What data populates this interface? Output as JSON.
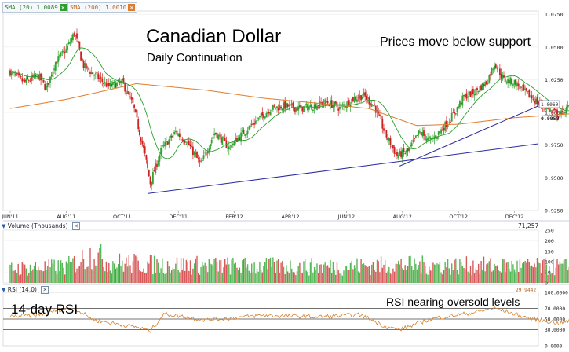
{
  "legend": {
    "sma20": {
      "label": "SMA (20) 1.0089",
      "color": "#2e9e2e",
      "close_color": "#2e9e2e"
    },
    "sma200": {
      "label": "SMA (200) 1.0010",
      "color": "#e07b2a",
      "close_color": "#e07b2a"
    }
  },
  "annotations": {
    "title": "Canadian Dollar",
    "subtitle": "Daily Continuation",
    "price_note": "Prices move below support",
    "rsi_label": "14-day RSI",
    "rsi_note": "RSI nearing oversold levels"
  },
  "panels": {
    "volume_title": "Volume (Thousands)",
    "volume_last": "71,257",
    "rsi_title": "RSI (14,0)"
  },
  "icons": {
    "collapse": "triangle-down-icon",
    "close": "close-icon"
  },
  "chart_data": [
    {
      "type": "candlestick",
      "title": "Canadian Dollar",
      "subtitle": "Daily Continuation",
      "x_tick_labels": [
        "JUN'11",
        "AUG'11",
        "OCT'11",
        "DEC'11",
        "FEB'12",
        "APR'12",
        "JUN'12",
        "AUG'12",
        "OCT'12",
        "DEC'12"
      ],
      "y_tick_labels": [
        "1.0750",
        "1.0500",
        "1.0250",
        "1.0000",
        "0.9750",
        "0.9500",
        "0.9250"
      ],
      "ylim": [
        0.925,
        1.0775
      ],
      "price_anchors": [
        {
          "month": 0,
          "price": 1.031
        },
        {
          "month": 0.5,
          "price": 1.023
        },
        {
          "month": 1.0,
          "price": 1.028
        },
        {
          "month": 1.3,
          "price": 1.018
        },
        {
          "month": 1.6,
          "price": 1.038
        },
        {
          "month": 2.0,
          "price": 1.048
        },
        {
          "month": 2.3,
          "price": 1.061
        },
        {
          "month": 2.6,
          "price": 1.036
        },
        {
          "month": 3.0,
          "price": 1.029
        },
        {
          "month": 3.5,
          "price": 1.02
        },
        {
          "month": 4.0,
          "price": 1.023
        },
        {
          "month": 4.4,
          "price": 1.005
        },
        {
          "month": 4.8,
          "price": 0.968
        },
        {
          "month": 5.0,
          "price": 0.946
        },
        {
          "month": 5.4,
          "price": 0.972
        },
        {
          "month": 5.9,
          "price": 0.985
        },
        {
          "month": 6.3,
          "price": 0.978
        },
        {
          "month": 6.8,
          "price": 0.96
        },
        {
          "month": 7.3,
          "price": 0.985
        },
        {
          "month": 7.8,
          "price": 0.973
        },
        {
          "month": 8.3,
          "price": 0.984
        },
        {
          "month": 8.8,
          "price": 0.994
        },
        {
          "month": 9.3,
          "price": 1.003
        },
        {
          "month": 9.8,
          "price": 1.005
        },
        {
          "month": 10.3,
          "price": 1.003
        },
        {
          "month": 10.8,
          "price": 1.005
        },
        {
          "month": 11.3,
          "price": 1.008
        },
        {
          "month": 11.8,
          "price": 1.003
        },
        {
          "month": 12.2,
          "price": 1.01
        },
        {
          "month": 12.6,
          "price": 1.013
        },
        {
          "month": 13.0,
          "price": 1.005
        },
        {
          "month": 13.4,
          "price": 0.983
        },
        {
          "month": 13.8,
          "price": 0.967
        },
        {
          "month": 14.2,
          "price": 0.97
        },
        {
          "month": 14.6,
          "price": 0.985
        },
        {
          "month": 15.0,
          "price": 0.978
        },
        {
          "month": 15.4,
          "price": 0.987
        },
        {
          "month": 15.8,
          "price": 0.998
        },
        {
          "month": 16.2,
          "price": 1.012
        },
        {
          "month": 16.6,
          "price": 1.016
        },
        {
          "month": 17.0,
          "price": 1.023
        },
        {
          "month": 17.3,
          "price": 1.038
        },
        {
          "month": 17.6,
          "price": 1.025
        },
        {
          "month": 18.0,
          "price": 1.023
        },
        {
          "month": 18.4,
          "price": 1.015
        },
        {
          "month": 18.8,
          "price": 1.008
        },
        {
          "month": 19.2,
          "price": 1.002
        },
        {
          "month": 19.6,
          "price": 0.998
        },
        {
          "month": 20.0,
          "price": 1.005
        },
        {
          "month": 20.4,
          "price": 1.006
        },
        {
          "month": 20.8,
          "price": 1.015
        },
        {
          "month": 21.2,
          "price": 1.014
        },
        {
          "month": 21.6,
          "price": 1.008
        },
        {
          "month": 22.0,
          "price": 1.014
        },
        {
          "month": 22.3,
          "price": 1.012
        },
        {
          "month": 22.6,
          "price": 1.006
        },
        {
          "month": 22.8,
          "price": 0.9958
        }
      ],
      "sma20_last": 1.0089,
      "sma200_last": 1.001,
      "sma200_anchors": [
        {
          "month": 0,
          "price": 1.003
        },
        {
          "month": 2,
          "price": 1.01
        },
        {
          "month": 4.5,
          "price": 1.022
        },
        {
          "month": 7,
          "price": 1.017
        },
        {
          "month": 9,
          "price": 1.011
        },
        {
          "month": 11,
          "price": 1.007
        },
        {
          "month": 12.8,
          "price": 1.003
        },
        {
          "month": 14.5,
          "price": 0.99
        },
        {
          "month": 16,
          "price": 0.991
        },
        {
          "month": 18,
          "price": 0.996
        },
        {
          "month": 20,
          "price": 0.999
        },
        {
          "month": 22.8,
          "price": 1.001
        }
      ],
      "trendlines": [
        {
          "from_month": 4.9,
          "from_price": 0.938,
          "to_month": 13.9,
          "to_price": 0.959,
          "to_end_price": 0.976
        },
        {
          "from_month": 13.9,
          "from_price": 0.959,
          "to_month": 22.8,
          "to_price": 1.005
        }
      ],
      "price_labels": [
        {
          "text": "1.0060",
          "value": 1.006,
          "style": "boxed"
        },
        {
          "text": "0.9958",
          "value": 0.9958,
          "style": "plain"
        }
      ]
    },
    {
      "type": "bar",
      "title": "Volume (Thousands)",
      "y_tick_labels": [
        "250",
        "200",
        "150",
        "100",
        "50",
        "0"
      ],
      "ylim": [
        0,
        250
      ],
      "last_value": "71,257",
      "volume_profile": [
        {
          "month": 0,
          "level": 85
        },
        {
          "month": 2,
          "level": 95
        },
        {
          "month": 3,
          "level": 175
        },
        {
          "month": 3.5,
          "level": 120
        },
        {
          "month": 5,
          "level": 110
        },
        {
          "month": 8,
          "level": 100
        },
        {
          "month": 11,
          "level": 95
        },
        {
          "month": 14,
          "level": 105
        },
        {
          "month": 17,
          "level": 100
        },
        {
          "month": 20,
          "level": 95
        },
        {
          "month": 22.8,
          "level": 90
        }
      ]
    },
    {
      "type": "line",
      "title": "RSI (14,0)",
      "last_value": "29.9442",
      "y_tick_labels": [
        "100.0000",
        "70.0000",
        "50.0000",
        "30.0000",
        "0.0000"
      ],
      "ylim": [
        0,
        100
      ],
      "reference_lines": [
        70,
        50,
        30
      ],
      "rsi_anchors": [
        {
          "month": 0,
          "value": 55
        },
        {
          "month": 1.0,
          "value": 57
        },
        {
          "month": 1.8,
          "value": 68
        },
        {
          "month": 2.3,
          "value": 70
        },
        {
          "month": 3.0,
          "value": 48
        },
        {
          "month": 4.5,
          "value": 35
        },
        {
          "month": 5.0,
          "value": 28
        },
        {
          "month": 5.5,
          "value": 60
        },
        {
          "month": 7,
          "value": 48
        },
        {
          "month": 9,
          "value": 57
        },
        {
          "month": 11,
          "value": 54
        },
        {
          "month": 12.5,
          "value": 58
        },
        {
          "month": 13.4,
          "value": 36
        },
        {
          "month": 13.9,
          "value": 30
        },
        {
          "month": 15,
          "value": 50
        },
        {
          "month": 16.5,
          "value": 62
        },
        {
          "month": 17.3,
          "value": 70
        },
        {
          "month": 18.5,
          "value": 52
        },
        {
          "month": 19.6,
          "value": 42
        },
        {
          "month": 20.6,
          "value": 55
        },
        {
          "month": 21.6,
          "value": 62
        },
        {
          "month": 22.3,
          "value": 52
        },
        {
          "month": 22.8,
          "value": 29.9442
        }
      ]
    }
  ]
}
